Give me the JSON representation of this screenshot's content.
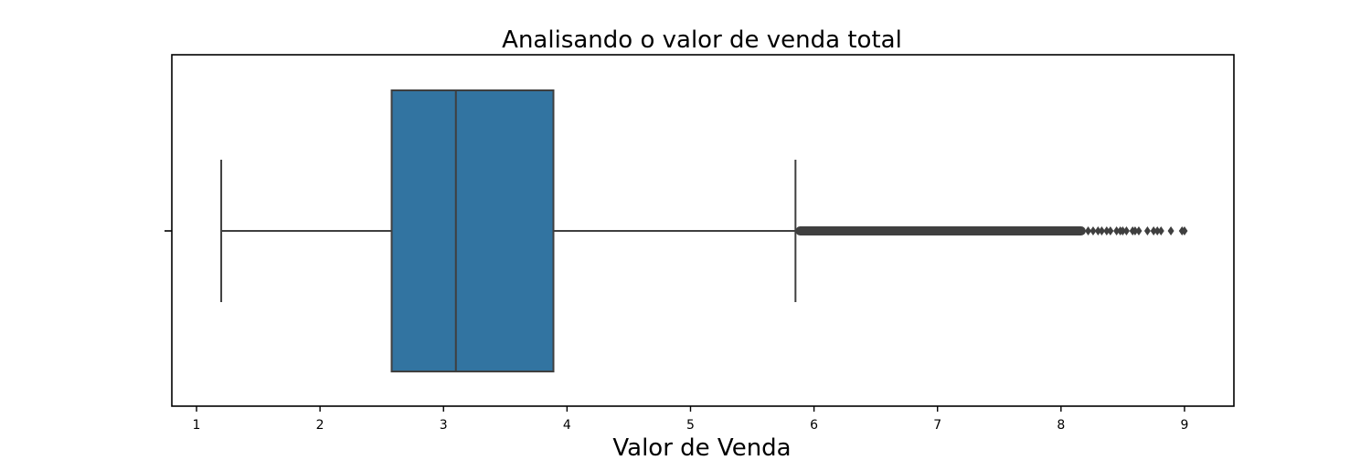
{
  "chart_data": {
    "type": "box",
    "title": "Analisando o valor de venda total",
    "xlabel": "Valor de Venda",
    "ylabel": "",
    "xlim": [
      0.8,
      9.4
    ],
    "x_ticks": [
      1,
      2,
      3,
      4,
      5,
      6,
      7,
      8,
      9
    ],
    "orientation": "horizontal",
    "grid": false,
    "box": {
      "whisker_low": 1.2,
      "q1": 2.58,
      "median": 3.1,
      "q3": 3.89,
      "whisker_high": 5.85,
      "color": "#3274a1",
      "line_color": "#3f3f3f"
    },
    "outliers_dense_range": [
      5.85,
      8.2
    ],
    "outliers": [
      8.22,
      8.26,
      8.3,
      8.33,
      8.37,
      8.4,
      8.45,
      8.48,
      8.5,
      8.53,
      8.58,
      8.6,
      8.63,
      8.7,
      8.75,
      8.78,
      8.81,
      8.89,
      8.98,
      9.0
    ]
  }
}
